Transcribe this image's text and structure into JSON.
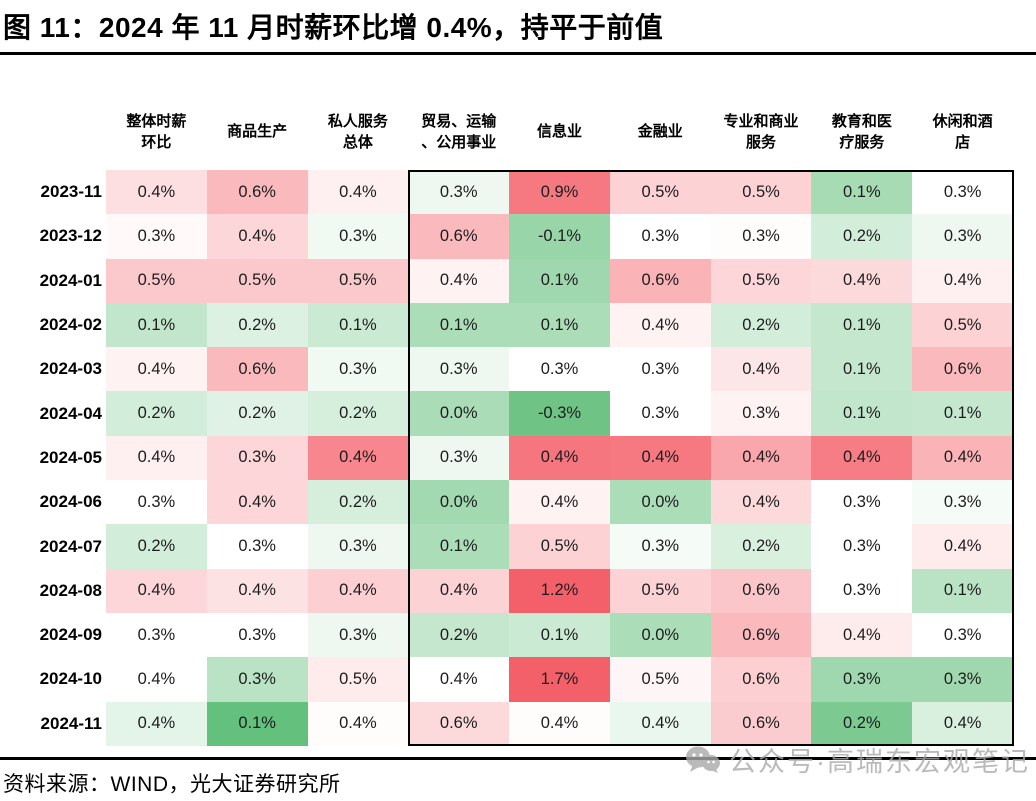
{
  "title": "图 11：2024 年 11 月时薪环比增 0.4%，持平于前值",
  "source": "资料来源：WIND，光大证券研究所",
  "watermark": {
    "icon": "wechat-icon",
    "text": "公众号·高瑞东宏观笔记"
  },
  "chart_data": {
    "type": "heatmap",
    "title": "2024 年 11 月时薪环比增 0.4%，持平于前值",
    "unit": "%",
    "legend_position": "none",
    "grid": false,
    "color_scale": {
      "high": "#f4606a",
      "mid": "#ffffff",
      "low": "#53b96e",
      "meaning": "red = higher MoM wage growth within row, green = lower"
    },
    "highlight_box": {
      "first_column_index": 3,
      "last_column_index": 8,
      "note": "black rectangle drawn around service-industry columns 贸易、运输、公用事业 through 休闲和酒店"
    },
    "columns": [
      "整体时薪\n环比",
      "商品生产",
      "私人服务\n总体",
      "贸易、运输\n、公用事业",
      "信息业",
      "金融业",
      "专业和商业\n服务",
      "教育和医\n疗服务",
      "休闲和酒\n店"
    ],
    "rows": [
      {
        "label": "2023-11",
        "values": [
          "0.4%",
          "0.6%",
          "0.4%",
          "0.3%",
          "0.9%",
          "0.5%",
          "0.5%",
          "0.1%",
          "0.3%"
        ],
        "tones": [
          1.0,
          2.2,
          0.5,
          -0.5,
          4.2,
          1.4,
          1.4,
          -2.6,
          0
        ]
      },
      {
        "label": "2023-12",
        "values": [
          "0.3%",
          "0.4%",
          "0.3%",
          "0.6%",
          "-0.1%",
          "0.3%",
          "0.3%",
          "0.2%",
          "0.3%"
        ],
        "tones": [
          0.2,
          1.3,
          -0.4,
          2.2,
          -3.0,
          0,
          0.1,
          -1.3,
          -0.5
        ]
      },
      {
        "label": "2024-01",
        "values": [
          "0.5%",
          "0.5%",
          "0.5%",
          "0.4%",
          "0.1%",
          "0.6%",
          "0.5%",
          "0.4%",
          "0.4%"
        ],
        "tones": [
          1.7,
          1.7,
          1.7,
          0.4,
          -2.8,
          2.4,
          1.3,
          1.2,
          0.5
        ]
      },
      {
        "label": "2024-02",
        "values": [
          "0.1%",
          "0.2%",
          "0.1%",
          "0.1%",
          "0.1%",
          "0.4%",
          "0.2%",
          "0.1%",
          "0.5%"
        ],
        "tones": [
          -1.8,
          -1.0,
          -1.5,
          -2.4,
          -2.4,
          0.4,
          -1.3,
          -1.7,
          1.4
        ]
      },
      {
        "label": "2024-03",
        "values": [
          "0.4%",
          "0.6%",
          "0.3%",
          "0.3%",
          "0.3%",
          "0.3%",
          "0.4%",
          "0.1%",
          "0.6%"
        ],
        "tones": [
          0.4,
          2.2,
          -0.4,
          -0.5,
          0,
          0,
          0.8,
          -1.7,
          2.2
        ]
      },
      {
        "label": "2024-04",
        "values": [
          "0.2%",
          "0.2%",
          "0.2%",
          "0.0%",
          "-0.3%",
          "0.3%",
          "0.3%",
          "0.1%",
          "0.1%"
        ],
        "tones": [
          -1.3,
          -0.9,
          -1.2,
          -2.5,
          -4.2,
          0,
          0.4,
          -1.8,
          -1.7
        ]
      },
      {
        "label": "2024-05",
        "values": [
          "0.4%",
          "0.3%",
          "0.4%",
          "0.3%",
          "0.4%",
          "0.4%",
          "0.4%",
          "0.4%",
          "0.4%"
        ],
        "tones": [
          0.5,
          1.3,
          3.8,
          -0.5,
          4.3,
          4.2,
          2.8,
          4.1,
          2.4
        ]
      },
      {
        "label": "2024-06",
        "values": [
          "0.3%",
          "0.4%",
          "0.2%",
          "0.0%",
          "0.4%",
          "0.0%",
          "0.4%",
          "0.3%",
          "0.3%"
        ],
        "tones": [
          0,
          1.3,
          -1.2,
          -2.7,
          0.4,
          -2.4,
          1.2,
          0,
          -0.3
        ]
      },
      {
        "label": "2024-07",
        "values": [
          "0.2%",
          "0.3%",
          "0.3%",
          "0.1%",
          "0.5%",
          "0.3%",
          "0.2%",
          "0.3%",
          "0.4%"
        ],
        "tones": [
          -1.3,
          0,
          -0.5,
          -2.4,
          1.4,
          -0.3,
          -1.1,
          0,
          0.6
        ]
      },
      {
        "label": "2024-08",
        "values": [
          "0.4%",
          "0.4%",
          "0.4%",
          "0.4%",
          "1.2%",
          "0.5%",
          "0.6%",
          "0.3%",
          "0.1%"
        ],
        "tones": [
          1.3,
          0.9,
          1.5,
          1.4,
          5.0,
          1.4,
          1.8,
          0,
          -2.0
        ]
      },
      {
        "label": "2024-09",
        "values": [
          "0.3%",
          "0.3%",
          "0.3%",
          "0.2%",
          "0.1%",
          "0.0%",
          "0.6%",
          "0.4%",
          "0.3%"
        ],
        "tones": [
          0,
          0,
          -0.5,
          -1.7,
          -1.5,
          -2.4,
          2.2,
          0.6,
          0
        ]
      },
      {
        "label": "2024-10",
        "values": [
          "0.4%",
          "0.3%",
          "0.5%",
          "0.4%",
          "1.7%",
          "0.5%",
          "0.6%",
          "0.3%",
          "0.3%"
        ],
        "tones": [
          0,
          -2.0,
          0.6,
          0,
          5.0,
          0.3,
          1.5,
          -2.8,
          -2.8
        ]
      },
      {
        "label": "2024-11",
        "values": [
          "0.4%",
          "0.1%",
          "0.4%",
          "0.6%",
          "0.4%",
          "0.4%",
          "0.6%",
          "0.2%",
          "0.4%"
        ],
        "tones": [
          -0.8,
          -4.5,
          0.1,
          1.2,
          0.1,
          -0.6,
          1.6,
          -3.8,
          -1.1
        ]
      }
    ]
  }
}
